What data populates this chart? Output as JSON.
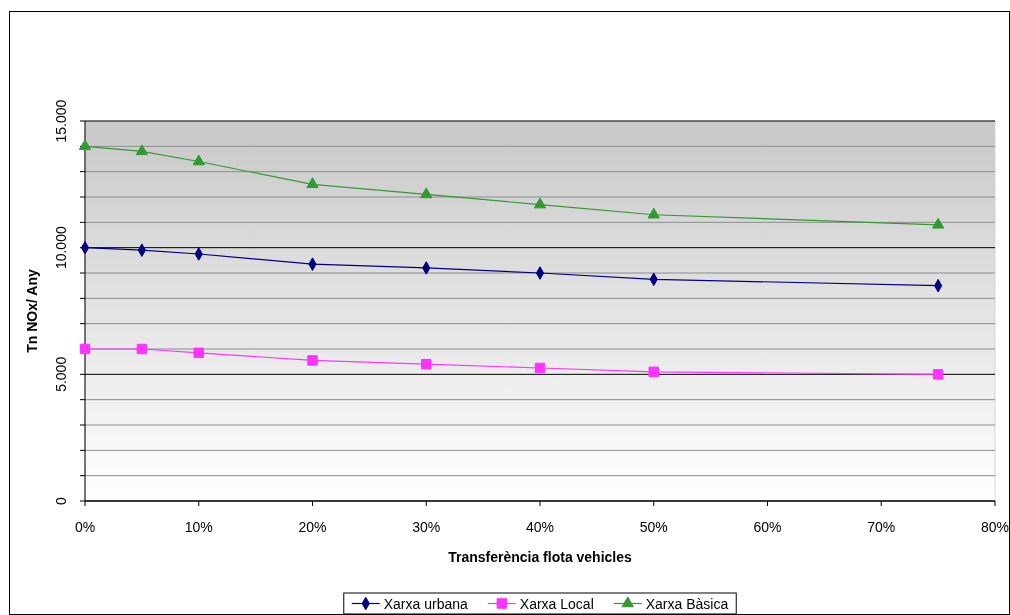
{
  "chart_data": {
    "type": "line",
    "xlabel": "Transferència flota vehicles",
    "ylabel": "Tn NOx/ Any",
    "x": [
      0,
      5,
      10,
      20,
      30,
      40,
      50,
      75
    ],
    "xlim": [
      0,
      80
    ],
    "xticks": [
      {
        "value": 0,
        "label": "0%"
      },
      {
        "value": 10,
        "label": "10%"
      },
      {
        "value": 20,
        "label": "20%"
      },
      {
        "value": 30,
        "label": "30%"
      },
      {
        "value": 40,
        "label": "40%"
      },
      {
        "value": 50,
        "label": "50%"
      },
      {
        "value": 60,
        "label": "60%"
      },
      {
        "value": 70,
        "label": "70%"
      },
      {
        "value": 80,
        "label": "80%"
      }
    ],
    "ylim": [
      0,
      15000
    ],
    "yticks": [
      0,
      {
        "value": 1000,
        "label": null
      },
      {
        "value": 2000,
        "label": null
      },
      {
        "value": 3000,
        "label": null
      },
      {
        "value": 4000,
        "label": null
      },
      {
        "value": 5000,
        "label": "5.000"
      },
      {
        "value": 6000,
        "label": null
      },
      {
        "value": 7000,
        "label": null
      },
      {
        "value": 8000,
        "label": null
      },
      {
        "value": 9000,
        "label": null
      },
      {
        "value": 10000,
        "label": "10.000"
      },
      {
        "value": 11000,
        "label": null
      },
      {
        "value": 12000,
        "label": null
      },
      {
        "value": 13000,
        "label": null
      },
      {
        "value": 14000,
        "label": null
      },
      {
        "value": 15000,
        "label": "15.000"
      }
    ],
    "grid": "y",
    "legend": "bottom",
    "series": [
      {
        "name": "Xarxa urbana",
        "color": "#000080",
        "marker": "diamond",
        "values": [
          10000,
          9900,
          9750,
          9350,
          9200,
          9000,
          8750,
          8500
        ]
      },
      {
        "name": "Xarxa Local",
        "color": "#ff33ff",
        "marker": "square",
        "values": [
          6000,
          6000,
          5850,
          5550,
          5400,
          5250,
          5100,
          5000
        ]
      },
      {
        "name": "Xarxa Bàsica",
        "color": "#339933",
        "marker": "triangle",
        "values": [
          14000,
          13800,
          13400,
          12500,
          12100,
          11700,
          11300,
          10900
        ]
      }
    ]
  }
}
